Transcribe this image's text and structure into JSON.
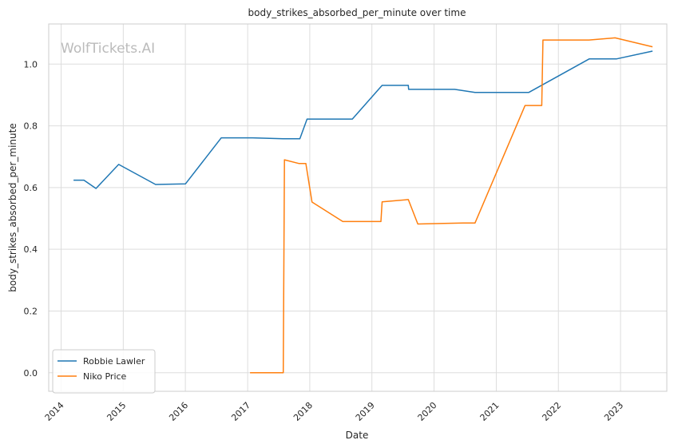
{
  "watermark": "WolfTickets.AI",
  "chart_data": {
    "type": "line",
    "title": "body_strikes_absorbed_per_minute over time",
    "xlabel": "Date",
    "ylabel": "body_strikes_absorbed_per_minute",
    "xlim": [
      "2013-10-20",
      "2023-09-30"
    ],
    "ylim": [
      -0.06,
      1.13
    ],
    "x_ticks": [
      "2014",
      "2015",
      "2016",
      "2017",
      "2018",
      "2019",
      "2020",
      "2021",
      "2022",
      "2023"
    ],
    "y_ticks": [
      "0.0",
      "0.2",
      "0.4",
      "0.6",
      "0.8",
      "1.0"
    ],
    "grid": true,
    "legend_position": "lower-left",
    "series": [
      {
        "name": "Robbie Lawler",
        "color": "#1f77b4",
        "points": [
          [
            "2014-03-15",
            0.624
          ],
          [
            "2014-05-15",
            0.624
          ],
          [
            "2014-07-25",
            0.597
          ],
          [
            "2014-12-05",
            0.675
          ],
          [
            "2015-07-10",
            0.61
          ],
          [
            "2016-01-02",
            0.612
          ],
          [
            "2016-07-30",
            0.761
          ],
          [
            "2017-01-30",
            0.761
          ],
          [
            "2017-07-29",
            0.758
          ],
          [
            "2017-11-04",
            0.758
          ],
          [
            "2017-12-16",
            0.822
          ],
          [
            "2018-09-08",
            0.822
          ],
          [
            "2019-03-02",
            0.931
          ],
          [
            "2019-08-03",
            0.931
          ],
          [
            "2019-08-05",
            0.918
          ],
          [
            "2020-05-01",
            0.918
          ],
          [
            "2020-08-29",
            0.908
          ],
          [
            "2021-07-10",
            0.908
          ],
          [
            "2022-07-02",
            1.017
          ],
          [
            "2022-12-10",
            1.017
          ],
          [
            "2023-07-08",
            1.042
          ]
        ]
      },
      {
        "name": "Niko Price",
        "color": "#ff7f0e",
        "points": [
          [
            "2017-01-15",
            0.0
          ],
          [
            "2017-07-29",
            0.0
          ],
          [
            "2017-08-05",
            0.69
          ],
          [
            "2017-10-28",
            0.678
          ],
          [
            "2017-12-09",
            0.678
          ],
          [
            "2018-01-14",
            0.553
          ],
          [
            "2018-07-14",
            0.49
          ],
          [
            "2019-02-23",
            0.49
          ],
          [
            "2019-03-02",
            0.554
          ],
          [
            "2019-08-03",
            0.561
          ],
          [
            "2019-09-28",
            0.482
          ],
          [
            "2020-03-01",
            0.484
          ],
          [
            "2020-06-20",
            0.485
          ],
          [
            "2020-08-29",
            0.485
          ],
          [
            "2021-06-19",
            0.866
          ],
          [
            "2021-09-25",
            0.866
          ],
          [
            "2021-10-02",
            1.078
          ],
          [
            "2022-06-30",
            1.078
          ],
          [
            "2022-11-30",
            1.085
          ],
          [
            "2023-07-08",
            1.056
          ]
        ]
      }
    ]
  }
}
